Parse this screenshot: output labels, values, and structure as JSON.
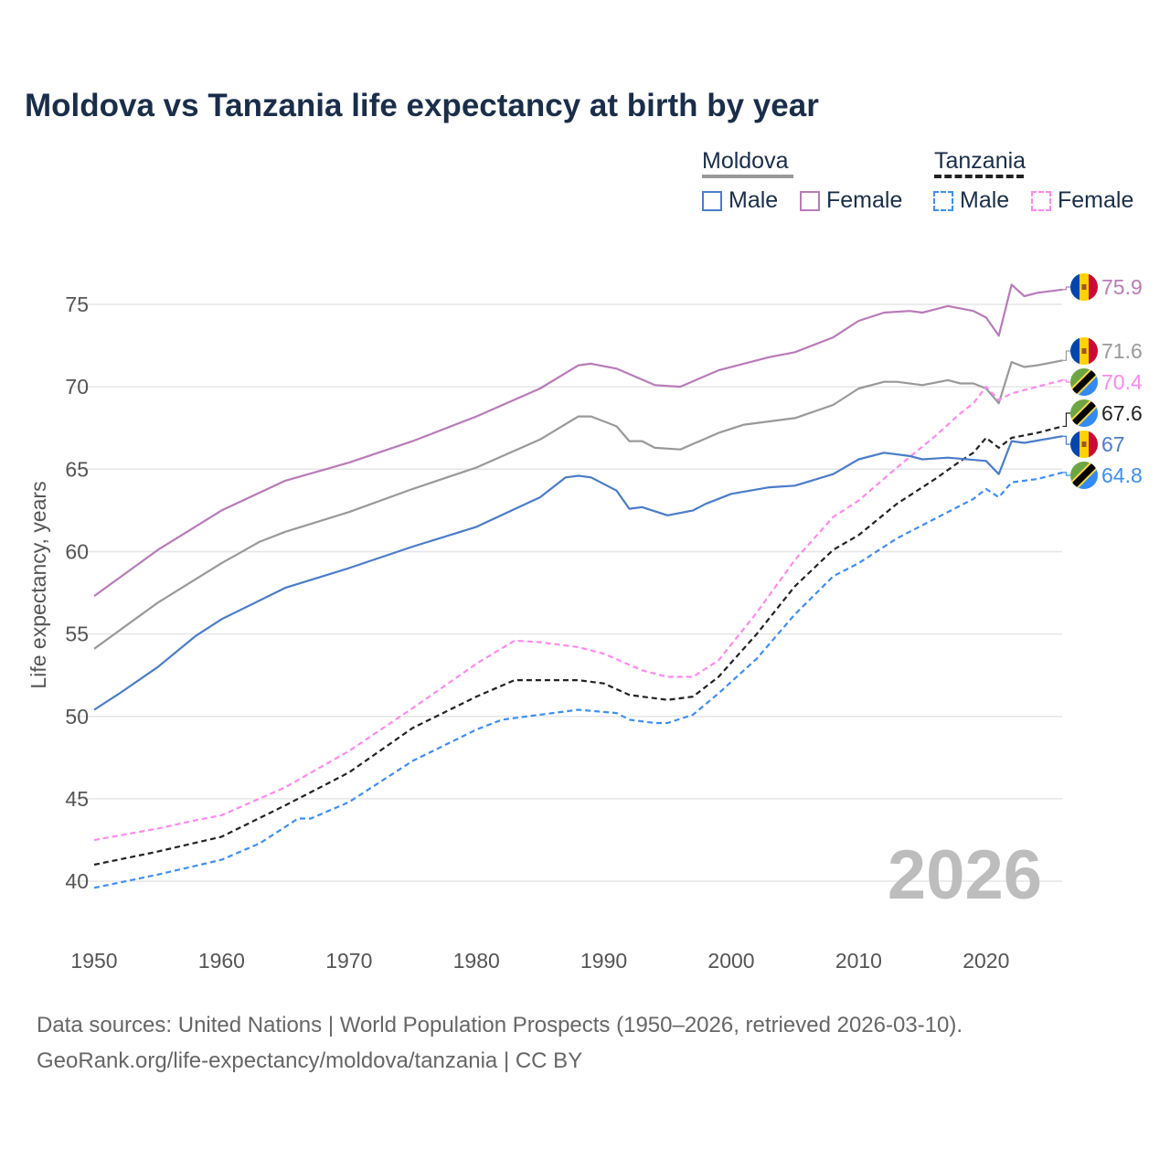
{
  "chart_data": {
    "type": "line",
    "title": "Moldova vs Tanzania life expectancy at birth by year",
    "xlabel": "",
    "ylabel": "Life expectancy, years",
    "xlim": [
      1950,
      2026
    ],
    "ylim": [
      37,
      78
    ],
    "xticks": [
      1950,
      1960,
      1970,
      1980,
      1990,
      2000,
      2010,
      2020
    ],
    "yticks": [
      40,
      45,
      50,
      55,
      60,
      65,
      70,
      75
    ],
    "grid": true,
    "watermark_year": "2026",
    "legend": {
      "placement": "top-right",
      "groups": [
        {
          "country": "Moldova",
          "items": [
            "Male",
            "Female"
          ]
        },
        {
          "country": "Tanzania",
          "items": [
            "Male",
            "Female"
          ]
        }
      ]
    },
    "series": [
      {
        "name": "Moldova Female",
        "country": "Moldova",
        "color": "#b87bb8",
        "dashed": false,
        "end_label": "75.9",
        "x": [
          1950,
          1955,
          1960,
          1965,
          1970,
          1975,
          1980,
          1985,
          1988,
          1989,
          1991,
          1994,
          1996,
          1999,
          2003,
          2005,
          2008,
          2010,
          2012,
          2014,
          2015,
          2017,
          2019,
          2020,
          2021,
          2022,
          2023,
          2024,
          2026
        ],
        "y": [
          57.3,
          60.1,
          62.5,
          64.3,
          65.4,
          66.7,
          68.2,
          69.9,
          71.3,
          71.4,
          71.1,
          70.1,
          70.0,
          71.0,
          71.8,
          72.1,
          73.0,
          74.0,
          74.5,
          74.6,
          74.5,
          74.9,
          74.6,
          74.2,
          73.1,
          76.2,
          75.5,
          75.7,
          75.9
        ]
      },
      {
        "name": "Moldova",
        "country": "Moldova",
        "color": "#999999",
        "dashed": false,
        "end_label": "71.6",
        "x": [
          1950,
          1955,
          1960,
          1963,
          1965,
          1970,
          1975,
          1980,
          1985,
          1988,
          1989,
          1991,
          1992,
          1993,
          1994,
          1996,
          1999,
          2001,
          2005,
          2008,
          2010,
          2012,
          2013,
          2015,
          2017,
          2018,
          2019,
          2020,
          2021,
          2022,
          2023,
          2024,
          2026
        ],
        "y": [
          54.1,
          56.9,
          59.3,
          60.6,
          61.2,
          62.4,
          63.8,
          65.1,
          66.8,
          68.2,
          68.2,
          67.6,
          66.7,
          66.7,
          66.3,
          66.2,
          67.2,
          67.7,
          68.1,
          68.9,
          69.9,
          70.3,
          70.3,
          70.1,
          70.4,
          70.2,
          70.2,
          69.9,
          69.0,
          71.5,
          71.2,
          71.3,
          71.6
        ]
      },
      {
        "name": "Tanzania Female",
        "country": "Tanzania",
        "color": "#ff88ee",
        "dashed": true,
        "end_label": "70.4",
        "x": [
          1950,
          1955,
          1958,
          1960,
          1965,
          1970,
          1975,
          1980,
          1983,
          1985,
          1988,
          1990,
          1993,
          1995,
          1997,
          1999,
          2002,
          2005,
          2008,
          2010,
          2013,
          2016,
          2018,
          2019,
          2020,
          2021,
          2022,
          2024,
          2026
        ],
        "y": [
          42.5,
          43.2,
          43.7,
          44.0,
          45.7,
          47.9,
          50.5,
          53.2,
          54.6,
          54.5,
          54.2,
          53.8,
          52.8,
          52.4,
          52.4,
          53.4,
          56.3,
          59.5,
          62.1,
          63.1,
          65.1,
          67.0,
          68.4,
          69.0,
          70.0,
          69.2,
          69.6,
          70.0,
          70.4
        ]
      },
      {
        "name": "Tanzania",
        "country": "Tanzania",
        "color": "#222222",
        "dashed": true,
        "end_label": "67.6",
        "x": [
          1950,
          1955,
          1960,
          1965,
          1970,
          1975,
          1980,
          1983,
          1985,
          1988,
          1990,
          1992,
          1995,
          1997,
          1999,
          2002,
          2005,
          2008,
          2010,
          2013,
          2016,
          2018,
          2019,
          2020,
          2021,
          2022,
          2024,
          2026
        ],
        "y": [
          41.0,
          41.8,
          42.7,
          44.6,
          46.6,
          49.3,
          51.2,
          52.2,
          52.2,
          52.2,
          52.0,
          51.3,
          51.0,
          51.2,
          52.4,
          55.0,
          57.9,
          60.1,
          61.0,
          62.9,
          64.4,
          65.5,
          66.0,
          66.9,
          66.3,
          66.9,
          67.2,
          67.6
        ]
      },
      {
        "name": "Moldova Male",
        "country": "Moldova",
        "color": "#4a7cc9",
        "dashed": false,
        "end_label": "67",
        "x": [
          1950,
          1952,
          1955,
          1958,
          1960,
          1965,
          1970,
          1975,
          1980,
          1985,
          1987,
          1988,
          1989,
          1991,
          1992,
          1993,
          1995,
          1997,
          1998,
          2000,
          2003,
          2005,
          2008,
          2010,
          2012,
          2014,
          2015,
          2017,
          2020,
          2021,
          2022,
          2023,
          2026
        ],
        "y": [
          50.4,
          51.4,
          53.0,
          54.9,
          55.9,
          57.8,
          59.0,
          60.3,
          61.5,
          63.3,
          64.5,
          64.6,
          64.5,
          63.7,
          62.6,
          62.7,
          62.2,
          62.5,
          62.9,
          63.5,
          63.9,
          64.0,
          64.7,
          65.6,
          66.0,
          65.8,
          65.6,
          65.7,
          65.5,
          64.7,
          66.7,
          66.6,
          67.0
        ]
      },
      {
        "name": "Tanzania Male",
        "country": "Tanzania",
        "color": "#3d8ef5",
        "dashed": true,
        "end_label": "64.8",
        "x": [
          1950,
          1955,
          1960,
          1963,
          1965,
          1966,
          1967,
          1970,
          1975,
          1980,
          1982,
          1985,
          1988,
          1991,
          1992,
          1994,
          1995,
          1997,
          1999,
          2002,
          2005,
          2008,
          2010,
          2013,
          2016,
          2019,
          2020,
          2021,
          2022,
          2024,
          2026
        ],
        "y": [
          39.6,
          40.4,
          41.3,
          42.3,
          43.3,
          43.8,
          43.8,
          44.8,
          47.3,
          49.2,
          49.8,
          50.1,
          50.4,
          50.2,
          49.8,
          49.6,
          49.6,
          50.1,
          51.4,
          53.5,
          56.2,
          58.5,
          59.3,
          60.8,
          62.0,
          63.2,
          63.8,
          63.3,
          64.2,
          64.4,
          64.8
        ]
      }
    ]
  },
  "flag_colors": {
    "moldova": [
      "#0046ae",
      "#ffd200",
      "#cc092f"
    ],
    "tanzania": [
      "#6da544",
      "#338af3",
      "#000000",
      "#ffda44"
    ]
  },
  "footer": {
    "line1": "Data sources: United Nations | World Population Prospects (1950–2026, retrieved 2026-03-10).",
    "line2": "GeoRank.org/life-expectancy/moldova/tanzania | CC BY"
  }
}
